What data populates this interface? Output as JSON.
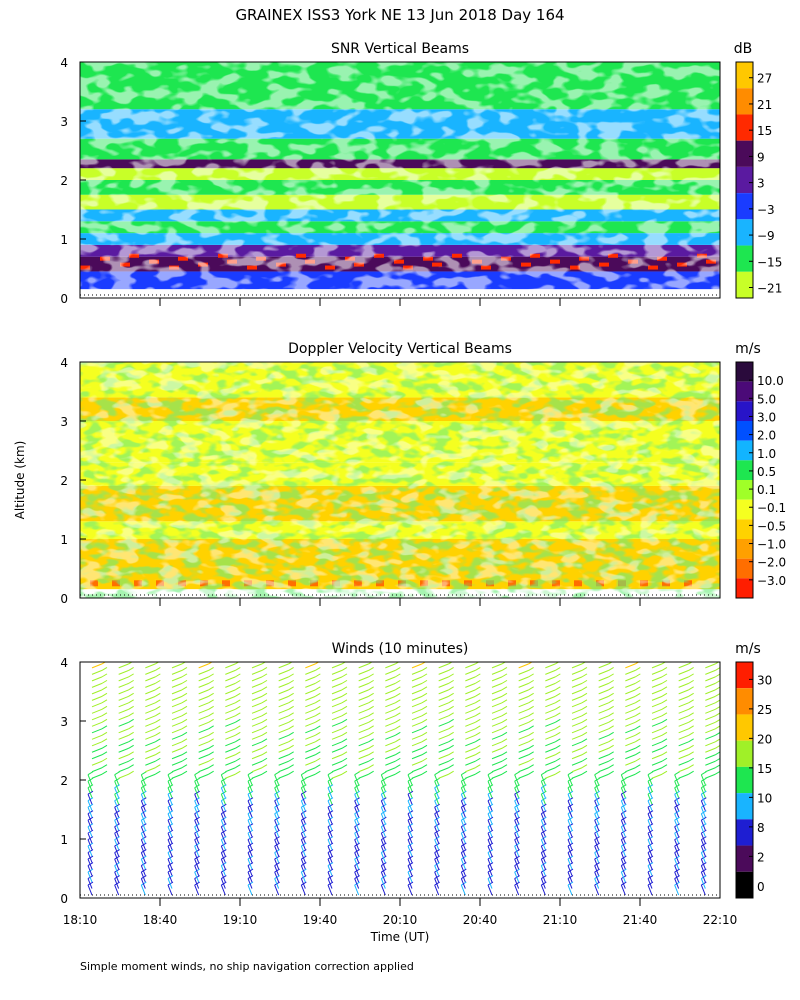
{
  "figure": {
    "title": "GRAINEX ISS3 York NE  13 Jun 2018 Day 164",
    "ylabel": "Altitude (km)",
    "xlabel": "Time (UT)",
    "footnote": "Simple moment winds, no ship navigation correction applied"
  },
  "chart_data": [
    {
      "type": "heatmap",
      "title": "SNR Vertical Beams",
      "colorbar_label": "dB",
      "colorbar_ticks": [
        "27",
        "21",
        "15",
        "9",
        "3",
        "−3",
        "−9",
        "−15",
        "−21"
      ],
      "colorbar_colors": [
        "#ffc800",
        "#ff8c00",
        "#ff2a00",
        "#4b0a5a",
        "#5a1aa0",
        "#1a3cff",
        "#19b4ff",
        "#1ee650",
        "#c8ff28"
      ],
      "y_ticks": [
        "0",
        "1",
        "2",
        "3",
        "4"
      ],
      "ylim": [
        0,
        4
      ],
      "xlim": [
        "18:10",
        "22:10"
      ],
      "layers": [
        {
          "altitude_km": 0.3,
          "snr_db": 8
        },
        {
          "altitude_km": 0.6,
          "snr_db": 10
        },
        {
          "altitude_km": 0.9,
          "snr_db": 12
        },
        {
          "altitude_km": 1.2,
          "snr_db": -10
        },
        {
          "altitude_km": 1.5,
          "snr_db": -5
        },
        {
          "altitude_km": 1.8,
          "snr_db": -15
        },
        {
          "altitude_km": 2.2,
          "snr_db": 8
        },
        {
          "altitude_km": 3.0,
          "snr_db": -12
        }
      ]
    },
    {
      "type": "heatmap",
      "title": "Doppler Velocity Vertical Beams",
      "colorbar_label": "m/s",
      "colorbar_ticks": [
        "10.0",
        "5.0",
        "3.0",
        "2.0",
        "1.0",
        "0.5",
        "0.1",
        "−0.1",
        "−0.5",
        "−1.0",
        "−2.0",
        "−3.0"
      ],
      "colorbar_colors": [
        "#2a0a3c",
        "#4b0a78",
        "#2814c8",
        "#0050ff",
        "#12b4ff",
        "#1ee650",
        "#a0ff28",
        "#f5ff20",
        "#ffd200",
        "#ffa000",
        "#ff6e00",
        "#ff1e00"
      ],
      "y_ticks": [
        "0",
        "1",
        "2",
        "3",
        "4"
      ],
      "ylim": [
        0,
        4
      ],
      "xlim": [
        "18:10",
        "22:10"
      ]
    },
    {
      "type": "scatter",
      "title": "Winds (10 minutes)",
      "colorbar_label": "m/s",
      "colorbar_ticks": [
        "30",
        "25",
        "20",
        "15",
        "10",
        "8",
        "2",
        "0"
      ],
      "colorbar_colors": [
        "#ff1e00",
        "#ff8c00",
        "#ffc800",
        "#a0f028",
        "#1ee650",
        "#19b4ff",
        "#1e1ed2",
        "#4b0a5a",
        "#000000"
      ],
      "y_ticks": [
        "0",
        "1",
        "2",
        "3",
        "4"
      ],
      "ylim": [
        0,
        4
      ],
      "x_ticks": [
        "18:10",
        "18:40",
        "19:10",
        "19:40",
        "20:10",
        "20:40",
        "21:10",
        "21:40",
        "22:10"
      ],
      "times": [
        "18:10",
        "18:20",
        "18:30",
        "18:40",
        "18:50",
        "19:00",
        "19:10",
        "19:20",
        "19:30",
        "19:40",
        "19:50",
        "20:00",
        "20:10",
        "20:20",
        "20:30",
        "20:40",
        "20:50",
        "21:00",
        "21:10",
        "21:20",
        "21:30",
        "21:40",
        "21:50",
        "22:00"
      ],
      "wind_profile": [
        {
          "altitude_km": 0.5,
          "speed_ms": 5
        },
        {
          "altitude_km": 1.5,
          "speed_ms": 7
        },
        {
          "altitude_km": 2.0,
          "speed_ms": 12
        },
        {
          "altitude_km": 3.0,
          "speed_ms": 15
        },
        {
          "altitude_km": 3.8,
          "speed_ms": 17
        }
      ]
    }
  ]
}
